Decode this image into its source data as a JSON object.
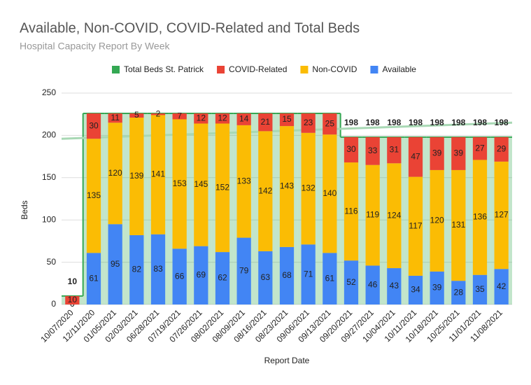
{
  "chart_data": {
    "type": "combo",
    "title": "Available, Non-COVID, COVID-Related and Total Beds",
    "subtitle": "Hospital Capacity Report By Week",
    "x_label": "Report Date",
    "y_label": "Beds",
    "categories": [
      "10/07/2020",
      "12/11/2020",
      "01/05/2021",
      "02/03/2021",
      "06/28/2021",
      "07/19/2021",
      "07/26/2021",
      "08/02/2021",
      "08/09/2021",
      "08/16/2021",
      "08/23/2021",
      "09/06/2021",
      "09/13/2021",
      "09/20/2021",
      "09/27/2021",
      "10/04/2021",
      "10/11/2021",
      "10/18/2021",
      "10/25/2021",
      "11/01/2021",
      "11/08/2021"
    ],
    "ylim": [
      0,
      250
    ],
    "yticks": [
      0,
      50,
      100,
      150,
      200,
      250
    ],
    "grid": true,
    "legend": "top",
    "series": [
      {
        "name": "Total Beds St. Patrick",
        "color": "#34a853",
        "mark": "stepped_area",
        "values": [
          10,
          226,
          226,
          226,
          226,
          226,
          226,
          226,
          226,
          226,
          226,
          226,
          226,
          198,
          198,
          198,
          198,
          198,
          198,
          198,
          198
        ],
        "value_labels": [
          "10",
          null,
          null,
          null,
          null,
          null,
          null,
          null,
          null,
          null,
          null,
          null,
          null,
          "198",
          "198",
          "198",
          "198",
          "198",
          "198",
          "198",
          "198"
        ]
      },
      {
        "name": "COVID-Related",
        "color": "#ea4335",
        "mark": "bar",
        "values": [
          10,
          30,
          11,
          5,
          2,
          7,
          12,
          12,
          14,
          21,
          15,
          23,
          25,
          30,
          33,
          31,
          47,
          39,
          39,
          27,
          29
        ]
      },
      {
        "name": "Non-COVID",
        "color": "#fbbc04",
        "mark": "bar",
        "values": [
          0,
          135,
          120,
          139,
          141,
          153,
          145,
          152,
          133,
          142,
          143,
          132,
          140,
          116,
          119,
          124,
          117,
          120,
          131,
          136,
          127
        ]
      },
      {
        "name": "Available",
        "color": "#4285f4",
        "mark": "bar",
        "values": [
          0,
          61,
          95,
          82,
          83,
          66,
          69,
          62,
          79,
          63,
          68,
          71,
          61,
          52,
          46,
          43,
          34,
          39,
          28,
          35,
          42
        ]
      }
    ],
    "trendline": {
      "color": "#a8d8b4",
      "start": 196,
      "end": 215
    }
  }
}
